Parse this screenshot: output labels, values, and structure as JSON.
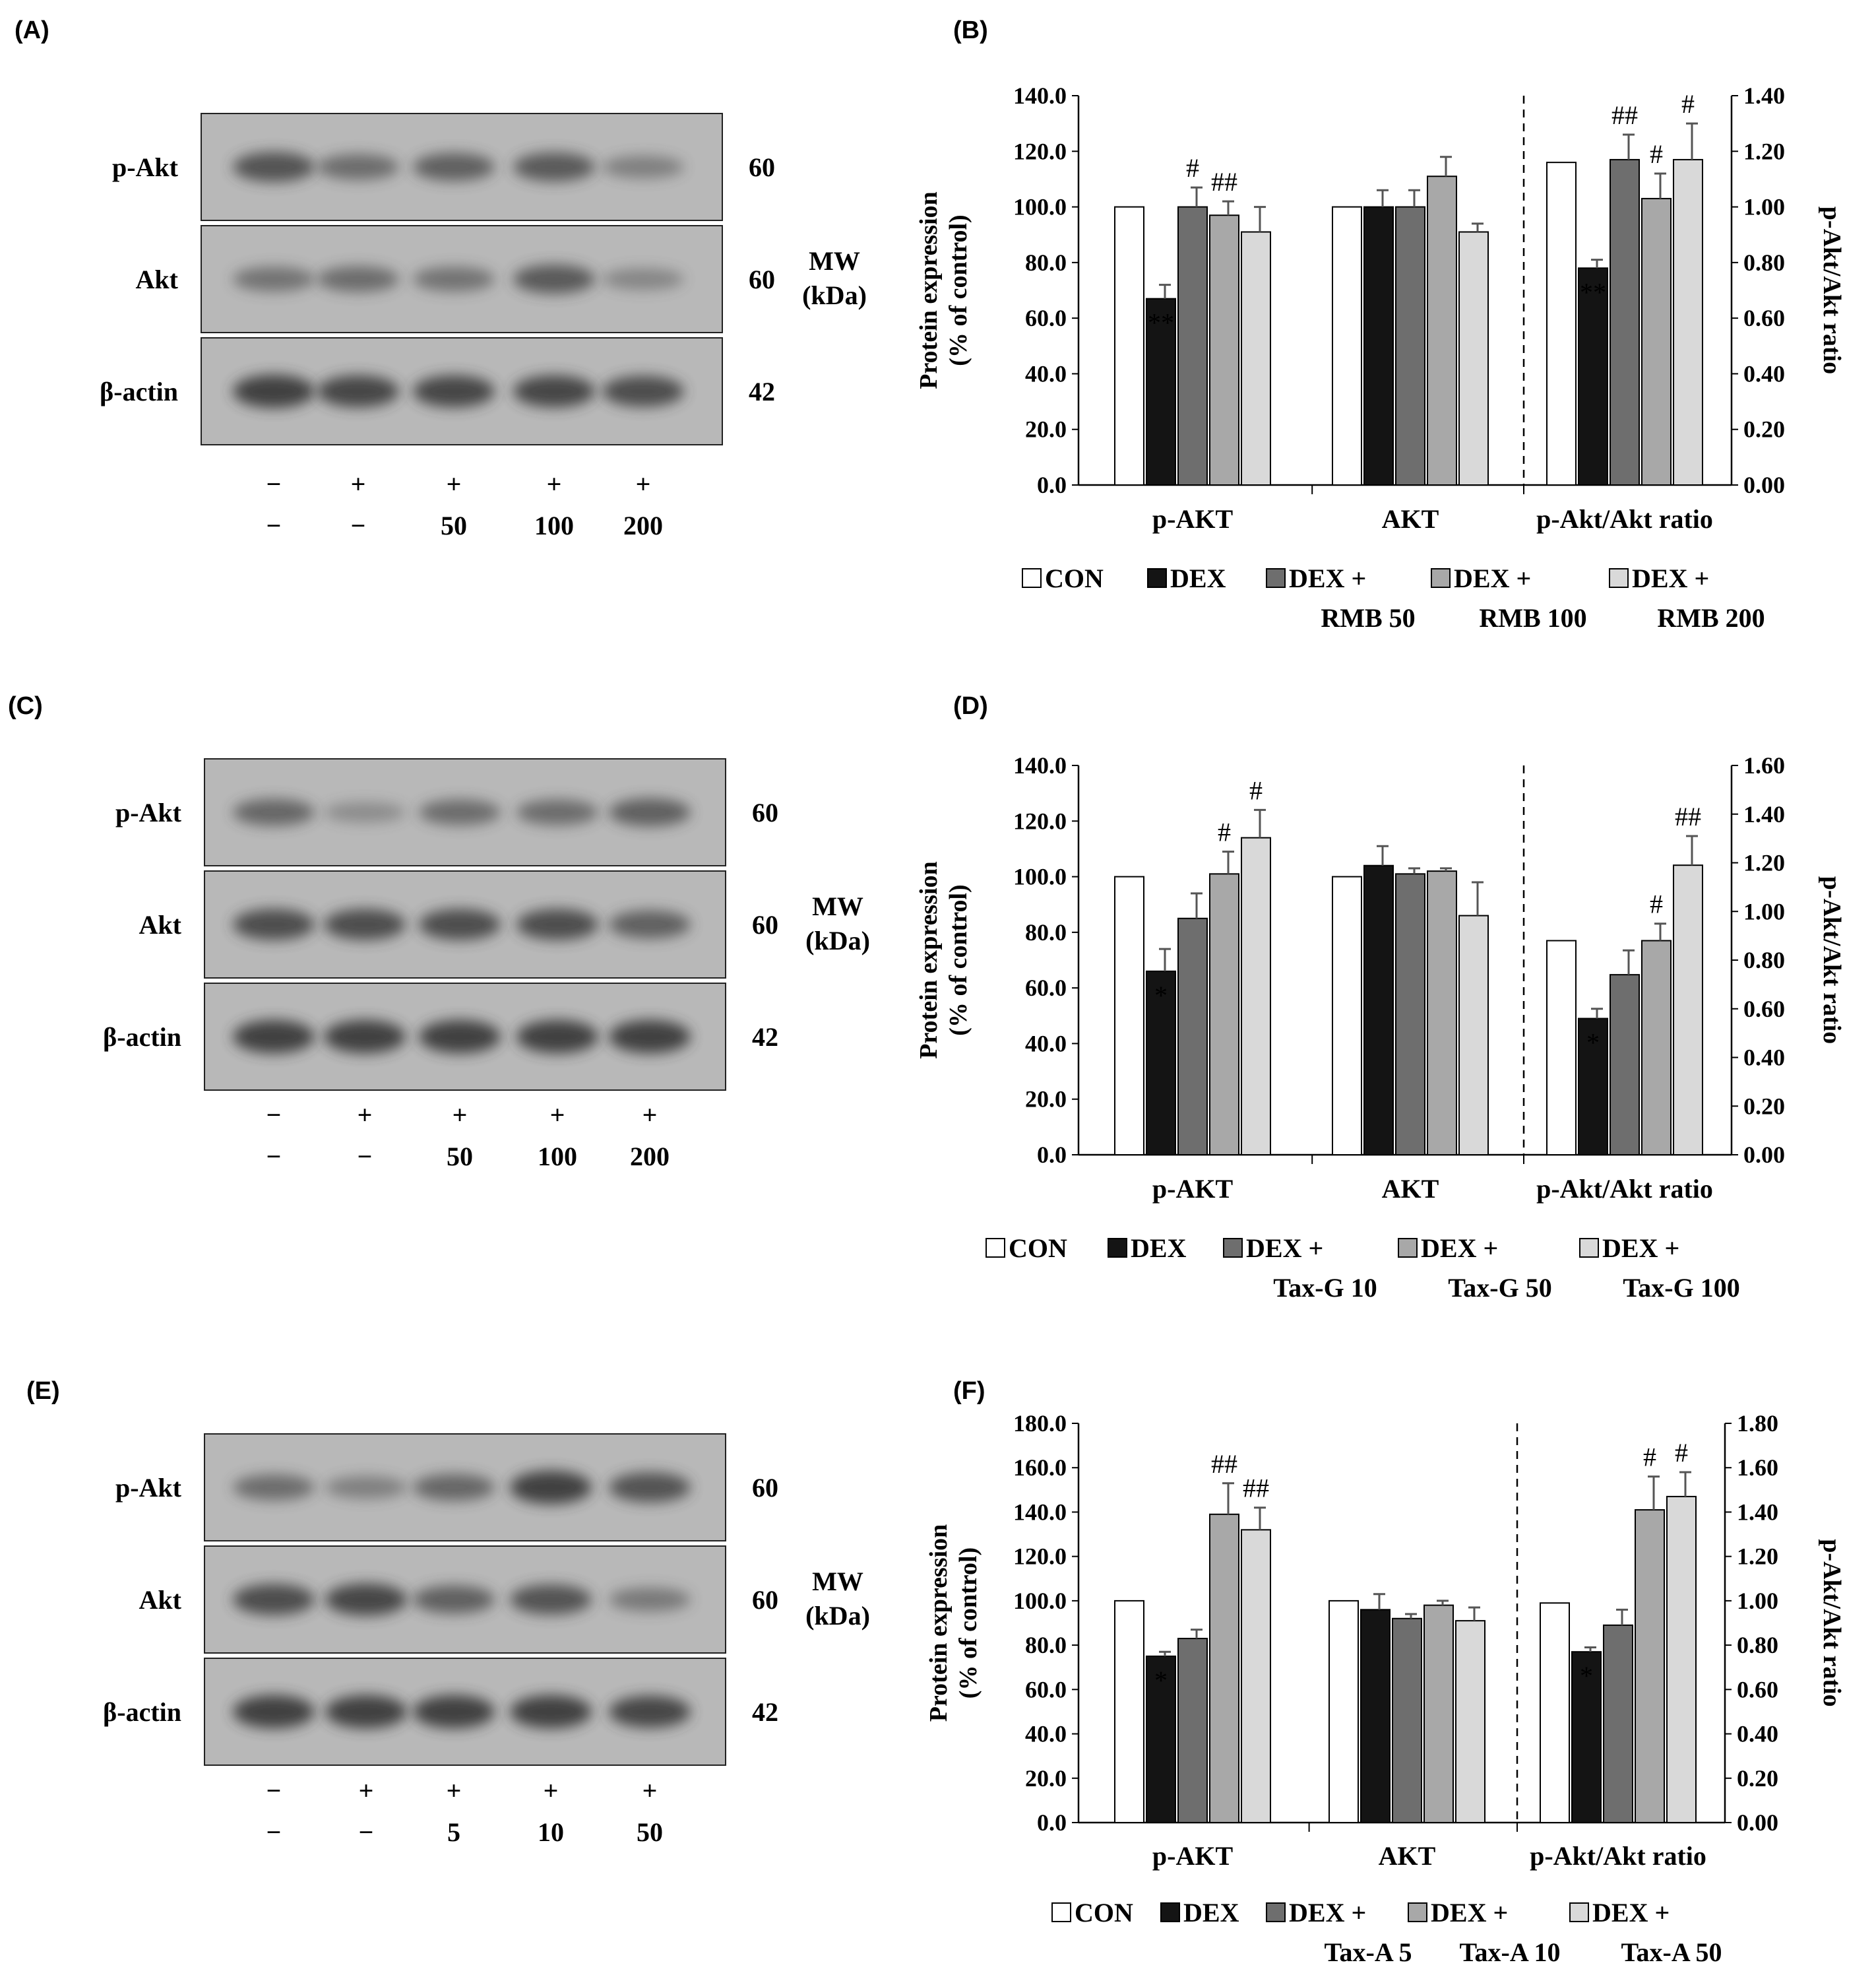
{
  "colors": {
    "CON": "#ffffff",
    "DEX": "#141414",
    "DEX_low": "#6e6e6e",
    "DEX_mid": "#a8a8a8",
    "DEX_high": "#d9d9d9",
    "axis": "#000000",
    "blot_bg": "#b8b8b8",
    "band": "#3a3a3a"
  },
  "blots": [
    {
      "panel": "(A)",
      "rows": [
        {
          "label": "p-Akt",
          "mw": "60",
          "band_intensity": [
            0.8,
            0.6,
            0.7,
            0.75,
            0.45
          ]
        },
        {
          "label": "Akt",
          "mw": "60",
          "band_intensity": [
            0.55,
            0.6,
            0.55,
            0.75,
            0.4
          ]
        },
        {
          "label": "β-actin",
          "mw": "42",
          "band_intensity": [
            0.95,
            0.9,
            0.9,
            0.9,
            0.85
          ]
        }
      ],
      "mw_title": [
        "MW",
        "(kDa)"
      ],
      "dex_row": [
        "−",
        "+",
        "+",
        "+",
        "+"
      ],
      "dose_row": [
        "−",
        "−",
        "50",
        "100",
        "200"
      ]
    },
    {
      "panel": "(C)",
      "rows": [
        {
          "label": "p-Akt",
          "mw": "60",
          "band_intensity": [
            0.65,
            0.35,
            0.6,
            0.6,
            0.7
          ]
        },
        {
          "label": "Akt",
          "mw": "60",
          "band_intensity": [
            0.85,
            0.85,
            0.85,
            0.85,
            0.7
          ]
        },
        {
          "label": "β-actin",
          "mw": "42",
          "band_intensity": [
            0.95,
            0.95,
            0.95,
            0.95,
            0.95
          ]
        }
      ],
      "mw_title": [
        "MW",
        "(kDa)"
      ],
      "dex_row": [
        "−",
        "+",
        "+",
        "+",
        "+"
      ],
      "dose_row": [
        "−",
        "−",
        "50",
        "100",
        "200"
      ]
    },
    {
      "panel": "(E)",
      "rows": [
        {
          "label": "p-Akt",
          "mw": "60",
          "band_intensity": [
            0.6,
            0.45,
            0.65,
            0.95,
            0.8
          ]
        },
        {
          "label": "Akt",
          "mw": "60",
          "band_intensity": [
            0.85,
            0.9,
            0.7,
            0.8,
            0.5
          ]
        },
        {
          "label": "β-actin",
          "mw": "42",
          "band_intensity": [
            0.95,
            0.95,
            0.95,
            0.95,
            0.9
          ]
        }
      ],
      "mw_title": [
        "MW",
        "(kDa)"
      ],
      "dex_row": [
        "−",
        "+",
        "+",
        "+",
        "+"
      ],
      "dose_row": [
        "−",
        "−",
        "5",
        "10",
        "50"
      ]
    }
  ],
  "chart_data": [
    {
      "panel": "(B)",
      "type": "bar",
      "categories": [
        "p-AKT",
        "AKT",
        "p-Akt/Akt ratio"
      ],
      "ylabel": [
        "Protein expression",
        "(% of control)"
      ],
      "y2label": "p-Akt/Akt ratio",
      "ylim": [
        0,
        140
      ],
      "yticks": [
        "0.0",
        "20.0",
        "40.0",
        "60.0",
        "80.0",
        "100.0",
        "120.0",
        "140.0"
      ],
      "y2lim": [
        0,
        1.4
      ],
      "y2ticks": [
        "0.00",
        "0.20",
        "0.40",
        "0.60",
        "0.80",
        "1.00",
        "1.20",
        "1.40"
      ],
      "series": [
        {
          "name": "CON",
          "legend": [
            "CON"
          ],
          "values": [
            100,
            100,
            1.16
          ],
          "errors": [
            0,
            0,
            0
          ],
          "sig": [
            "",
            "",
            ""
          ]
        },
        {
          "name": "DEX",
          "legend": [
            "DEX"
          ],
          "values": [
            67,
            100,
            0.78
          ],
          "errors": [
            5,
            6,
            0.03
          ],
          "sig": [
            "**",
            "",
            "**"
          ]
        },
        {
          "name": "DEX + RMB 50",
          "legend": [
            "DEX +",
            "RMB 50"
          ],
          "values": [
            100,
            100,
            1.17
          ],
          "errors": [
            7,
            6,
            0.09
          ],
          "sig": [
            "#",
            "",
            "##"
          ]
        },
        {
          "name": "DEX + RMB 100",
          "legend": [
            "DEX +",
            "RMB 100"
          ],
          "values": [
            97,
            111,
            1.03
          ],
          "errors": [
            5,
            7,
            0.09
          ],
          "sig": [
            "##",
            "",
            "#"
          ]
        },
        {
          "name": "DEX + RMB 200",
          "legend": [
            "DEX +",
            "RMB 200"
          ],
          "values": [
            91,
            91,
            1.17
          ],
          "errors": [
            9,
            3,
            0.13
          ],
          "sig": [
            "",
            "",
            "#"
          ]
        }
      ]
    },
    {
      "panel": "(D)",
      "type": "bar",
      "categories": [
        "p-AKT",
        "AKT",
        "p-Akt/Akt ratio"
      ],
      "ylabel": [
        "Protein expression",
        "(% of control)"
      ],
      "y2label": "p-Akt/Akt ratio",
      "ylim": [
        0,
        140
      ],
      "yticks": [
        "0.0",
        "20.0",
        "40.0",
        "60.0",
        "80.0",
        "100.0",
        "120.0",
        "140.0"
      ],
      "y2lim": [
        0,
        1.6
      ],
      "y2ticks": [
        "0.00",
        "0.20",
        "0.40",
        "0.60",
        "0.80",
        "1.00",
        "1.20",
        "1.40",
        "1.60"
      ],
      "series": [
        {
          "name": "CON",
          "legend": [
            "CON"
          ],
          "values": [
            100,
            100,
            0.88
          ],
          "errors": [
            0,
            0,
            0
          ],
          "sig": [
            "",
            "",
            ""
          ]
        },
        {
          "name": "DEX",
          "legend": [
            "DEX"
          ],
          "values": [
            66,
            104,
            0.56
          ],
          "errors": [
            8,
            7,
            0.04
          ],
          "sig": [
            "*",
            "",
            "*"
          ]
        },
        {
          "name": "DEX + Tax-G 10",
          "legend": [
            "DEX +",
            "Tax-G 10"
          ],
          "values": [
            85,
            101,
            0.74
          ],
          "errors": [
            9,
            2,
            0.1
          ],
          "sig": [
            "",
            "",
            ""
          ]
        },
        {
          "name": "DEX + Tax-G 50",
          "legend": [
            "DEX +",
            "Tax-G 50"
          ],
          "values": [
            101,
            102,
            0.88
          ],
          "errors": [
            8,
            1,
            0.07
          ],
          "sig": [
            "#",
            "",
            "#"
          ]
        },
        {
          "name": "DEX + Tax-G 100",
          "legend": [
            "DEX +",
            "Tax-G 100"
          ],
          "values": [
            114,
            86,
            1.19
          ],
          "errors": [
            10,
            12,
            0.12
          ],
          "sig": [
            "#",
            "",
            "##"
          ]
        }
      ]
    },
    {
      "panel": "(F)",
      "type": "bar",
      "categories": [
        "p-AKT",
        "AKT",
        "p-Akt/Akt ratio"
      ],
      "ylabel": [
        "Protein expression",
        "(% of control)"
      ],
      "y2label": "p-Akt/Akt ratio",
      "ylim": [
        0,
        180
      ],
      "yticks": [
        "0.0",
        "20.0",
        "40.0",
        "60.0",
        "80.0",
        "100.0",
        "120.0",
        "140.0",
        "160.0",
        "180.0"
      ],
      "y2lim": [
        0,
        1.8
      ],
      "y2ticks": [
        "0.00",
        "0.20",
        "0.40",
        "0.60",
        "0.80",
        "1.00",
        "1.20",
        "1.40",
        "1.60",
        "1.80"
      ],
      "series": [
        {
          "name": "CON",
          "legend": [
            "CON"
          ],
          "values": [
            100,
            100,
            0.99
          ],
          "errors": [
            0,
            0,
            0
          ],
          "sig": [
            "",
            "",
            ""
          ]
        },
        {
          "name": "DEX",
          "legend": [
            "DEX"
          ],
          "values": [
            75,
            96,
            0.77
          ],
          "errors": [
            2,
            7,
            0.02
          ],
          "sig": [
            "*",
            "",
            "*"
          ]
        },
        {
          "name": "DEX + Tax-A 5",
          "legend": [
            "DEX +",
            "Tax-A 5"
          ],
          "values": [
            83,
            92,
            0.89
          ],
          "errors": [
            4,
            2,
            0.07
          ],
          "sig": [
            "",
            "",
            ""
          ]
        },
        {
          "name": "DEX + Tax-A 10",
          "legend": [
            "DEX +",
            "Tax-A 10"
          ],
          "values": [
            139,
            98,
            1.41
          ],
          "errors": [
            14,
            2,
            0.15
          ],
          "sig": [
            "##",
            "",
            "#"
          ]
        },
        {
          "name": "DEX + Tax-A 50",
          "legend": [
            "DEX +",
            "Tax-A 50"
          ],
          "values": [
            132,
            91,
            1.47
          ],
          "errors": [
            10,
            6,
            0.11
          ],
          "sig": [
            "##",
            "",
            "#"
          ]
        }
      ]
    }
  ]
}
